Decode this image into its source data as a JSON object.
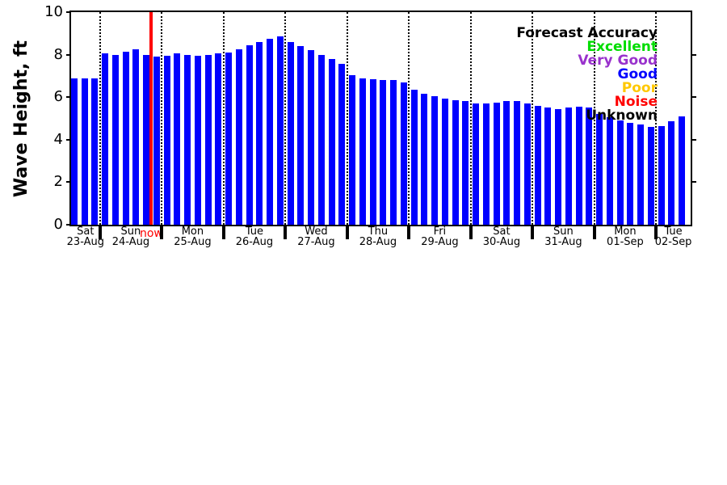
{
  "chart_data": {
    "type": "bar",
    "title": "",
    "ylabel": "Wave Height, ft",
    "ylim": [
      0,
      10
    ],
    "yticks": [
      0,
      2,
      4,
      6,
      8,
      10
    ],
    "right_ticks": [
      2,
      4,
      6,
      8
    ],
    "bar_color": "#0000ff",
    "bar_interval_hours": 4,
    "grid": "vertical dotted lines at day boundaries",
    "legend": {
      "title": "Forecast Accuracy",
      "title_color": "#000000",
      "position": "upper right",
      "items": [
        {
          "label": "Excellent",
          "color": "#00dd00"
        },
        {
          "label": "Very Good",
          "color": "#9932cc"
        },
        {
          "label": "Good",
          "color": "#0000ff"
        },
        {
          "label": "Poor",
          "color": "#ffc800"
        },
        {
          "label": "Noise",
          "color": "#ff0000"
        },
        {
          "label": "Unknown",
          "color": "#000000"
        }
      ]
    },
    "now_marker": {
      "label": "now",
      "color": "#ff0000",
      "after_global_bar_index": 7
    },
    "days": [
      {
        "day": "Sat",
        "date": "23-Aug",
        "values": [
          6.9,
          6.9,
          6.9
        ]
      },
      {
        "day": "Sun",
        "date": "24-Aug",
        "values": [
          8.05,
          8.0,
          8.15,
          8.25,
          8.0,
          7.9
        ]
      },
      {
        "day": "Mon",
        "date": "25-Aug",
        "values": [
          7.95,
          8.05,
          8.0,
          7.95,
          8.0,
          8.05
        ]
      },
      {
        "day": "Tue",
        "date": "26-Aug",
        "values": [
          8.1,
          8.25,
          8.45,
          8.6,
          8.75,
          8.85
        ]
      },
      {
        "day": "Wed",
        "date": "27-Aug",
        "values": [
          8.6,
          8.4,
          8.2,
          8.0,
          7.8,
          7.55
        ]
      },
      {
        "day": "Thu",
        "date": "28-Aug",
        "values": [
          7.05,
          6.9,
          6.85,
          6.8,
          6.8,
          6.7
        ]
      },
      {
        "day": "Fri",
        "date": "29-Aug",
        "values": [
          6.35,
          6.15,
          6.05,
          5.95,
          5.85,
          5.8
        ]
      },
      {
        "day": "Sat",
        "date": "30-Aug",
        "values": [
          5.7,
          5.7,
          5.75,
          5.8,
          5.8,
          5.7
        ]
      },
      {
        "day": "Sun",
        "date": "31-Aug",
        "values": [
          5.6,
          5.5,
          5.45,
          5.5,
          5.55,
          5.5
        ]
      },
      {
        "day": "Mon",
        "date": "01-Sep",
        "values": [
          5.2,
          5.05,
          4.9,
          4.8,
          4.7,
          4.6
        ]
      },
      {
        "day": "Tue",
        "date": "02-Sep",
        "values": [
          4.65,
          4.85,
          5.1
        ]
      }
    ]
  }
}
